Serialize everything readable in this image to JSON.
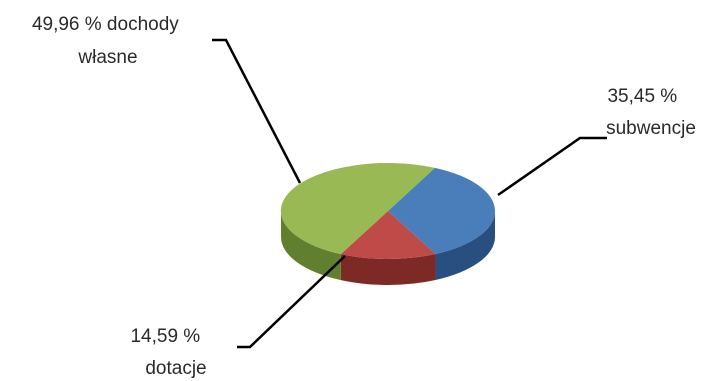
{
  "chart_data": {
    "type": "pie",
    "title": "",
    "slices": [
      {
        "label_lines": [
          "35,45 %",
          "subwencje"
        ],
        "value": 35.45,
        "color": "#4a7ebb",
        "side_color": "#284f7f"
      },
      {
        "label_lines": [
          "14,59 %",
          "dotacje"
        ],
        "value": 14.59,
        "color": "#be4b48",
        "side_color": "#7d2a27"
      },
      {
        "label_lines": [
          "49,96 % dochody",
          "własne"
        ],
        "value": 49.96,
        "color": "#98b954",
        "side_color": "#607f2f"
      }
    ],
    "legend": "none",
    "style": "3d-pie-with-callout-labels"
  }
}
